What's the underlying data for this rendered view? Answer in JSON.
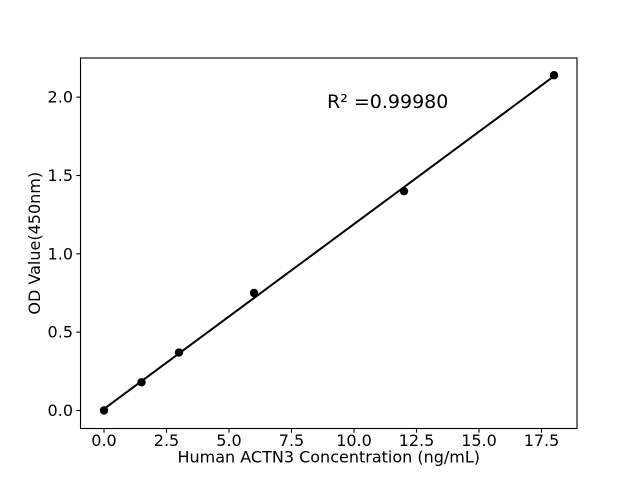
{
  "figure": {
    "background_color": "#ffffff",
    "foreground_color": "#000000"
  },
  "chart_data": {
    "type": "scatter",
    "title": "",
    "xlabel": "Human ACTN3 Concentration (ng/mL)",
    "ylabel": "OD Value(450nm)",
    "x": [
      0,
      1.5,
      3,
      6,
      12,
      18
    ],
    "y": [
      0.0,
      0.18,
      0.37,
      0.75,
      1.4,
      2.14
    ],
    "fit_line": {
      "x": [
        0,
        18
      ],
      "y": [
        0.01,
        2.134
      ]
    },
    "annotation": {
      "text": "R² =0.99980",
      "x": 8.92,
      "y": 1.93
    },
    "xlim": [
      -0.94,
      18.92
    ],
    "ylim": [
      -0.115,
      2.25
    ],
    "xticks": {
      "values": [
        0,
        2.5,
        5,
        7.5,
        10,
        12.5,
        15,
        17.5
      ],
      "labels": [
        "0.0",
        "2.5",
        "5.0",
        "7.5",
        "10.0",
        "12.5",
        "15.0",
        "17.5"
      ]
    },
    "yticks": {
      "values": [
        0,
        0.5,
        1.0,
        1.5,
        2.0
      ],
      "labels": [
        "0.0",
        "0.5",
        "1.0",
        "1.5",
        "2.0"
      ]
    },
    "grid": false,
    "legend": null,
    "marker_color": "#000000",
    "line_color": "#000000"
  }
}
